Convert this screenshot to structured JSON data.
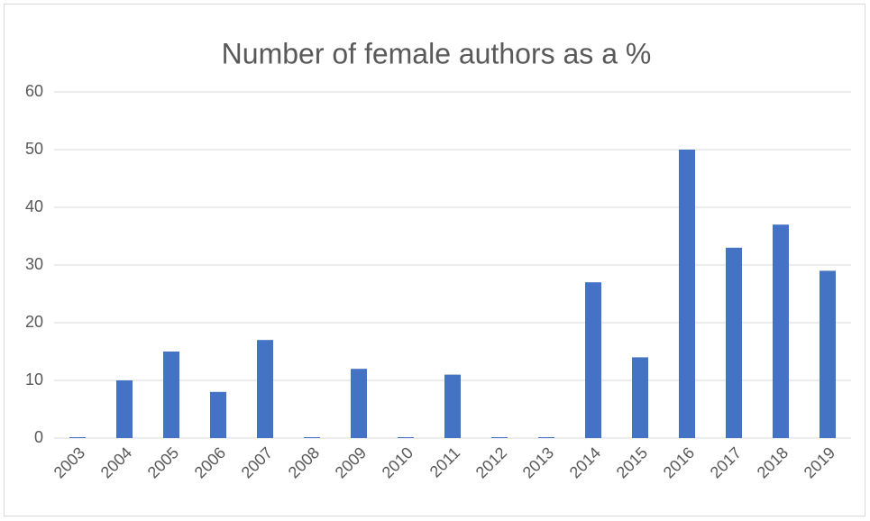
{
  "chart_data": {
    "type": "bar",
    "title": "Number of female authors as a %",
    "categories": [
      "2003",
      "2004",
      "2005",
      "2006",
      "2007",
      "2008",
      "2009",
      "2010",
      "2011",
      "2012",
      "2013",
      "2014",
      "2015",
      "2016",
      "2017",
      "2018",
      "2019"
    ],
    "values": [
      0,
      10,
      15,
      8,
      17,
      0,
      12,
      0,
      11,
      0,
      0,
      27,
      14,
      50,
      33,
      37,
      29
    ],
    "color": "#4472c4",
    "ylim": [
      0,
      60
    ],
    "yticks": [
      0,
      10,
      20,
      30,
      40,
      50,
      60
    ],
    "grid": true
  }
}
